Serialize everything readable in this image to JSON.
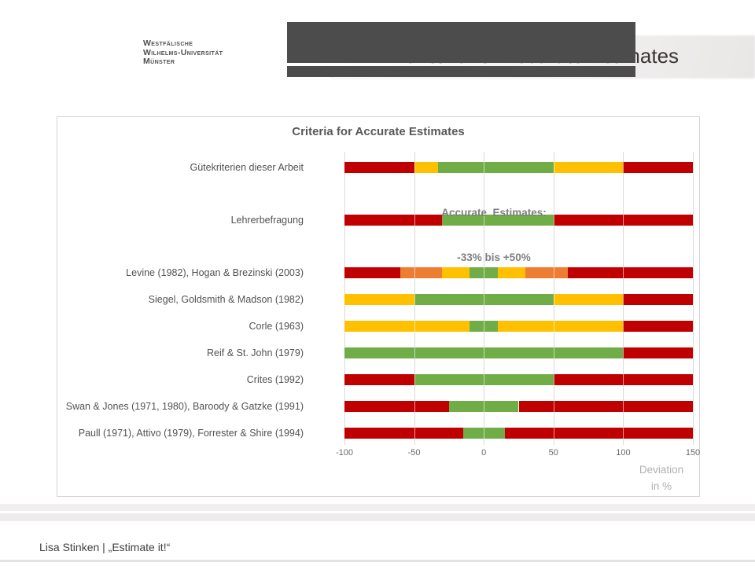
{
  "slide": {
    "logo": {
      "line1": "Westfälische",
      "line2": "Wilhelms-Universität",
      "line3": "Münster"
    },
    "header_title": "Criteria for Accurate Estimates",
    "footer_text": "Lisa Stinken | „Estimate it!“"
  },
  "chart_data": {
    "type": "bar",
    "orientation": "horizontal",
    "stacked": true,
    "title": "Criteria for Accurate Estimates",
    "xlabel": "Deviation in %",
    "xlabel_lines": [
      "Deviation",
      "in %"
    ],
    "xlim": [
      -100,
      150
    ],
    "x_ticks": [
      -100,
      -50,
      0,
      50,
      100,
      150
    ],
    "x_tick_labels": [
      "-100",
      "-50",
      "0",
      "50",
      "100",
      "150"
    ],
    "grid": true,
    "legend": false,
    "annotation": {
      "line1": "Accurate  Estimates:",
      "line2": "-33% bis +50%"
    },
    "colors": {
      "red": "#C00000",
      "orange": "#ED7D31",
      "yellow": "#FFC000",
      "green": "#70AD47",
      "gridline": "#D9D9D9"
    },
    "rows": [
      {
        "label": "Gütekriterien dieser Arbeit",
        "segments": [
          {
            "from": -100,
            "to": -50,
            "color": "red"
          },
          {
            "from": -50,
            "to": -33,
            "color": "yellow"
          },
          {
            "from": -33,
            "to": 50,
            "color": "green"
          },
          {
            "from": 50,
            "to": 100,
            "color": "yellow"
          },
          {
            "from": 100,
            "to": 150,
            "color": "red"
          }
        ]
      },
      {
        "label": "Lehrerbefragung",
        "segments": [
          {
            "from": -100,
            "to": -30,
            "color": "red"
          },
          {
            "from": -30,
            "to": 50,
            "color": "green"
          },
          {
            "from": 50,
            "to": 150,
            "color": "red"
          }
        ]
      },
      {
        "label": "Levine (1982), Hogan & Brezinski (2003)",
        "segments": [
          {
            "from": -100,
            "to": -60,
            "color": "red"
          },
          {
            "from": -60,
            "to": -30,
            "color": "orange"
          },
          {
            "from": -30,
            "to": -10,
            "color": "yellow"
          },
          {
            "from": -10,
            "to": 10,
            "color": "green"
          },
          {
            "from": 10,
            "to": 30,
            "color": "yellow"
          },
          {
            "from": 30,
            "to": 60,
            "color": "orange"
          },
          {
            "from": 60,
            "to": 150,
            "color": "red"
          }
        ]
      },
      {
        "label": "Siegel, Goldsmith & Madson (1982)",
        "segments": [
          {
            "from": -100,
            "to": -50,
            "color": "yellow"
          },
          {
            "from": -50,
            "to": 50,
            "color": "green"
          },
          {
            "from": 50,
            "to": 100,
            "color": "yellow"
          },
          {
            "from": 100,
            "to": 150,
            "color": "red"
          }
        ]
      },
      {
        "label": "Corle (1963)",
        "segments": [
          {
            "from": -100,
            "to": -10,
            "color": "yellow"
          },
          {
            "from": -10,
            "to": 10,
            "color": "green"
          },
          {
            "from": 10,
            "to": 100,
            "color": "yellow"
          },
          {
            "from": 100,
            "to": 150,
            "color": "red"
          }
        ]
      },
      {
        "label": "Reif & St. John (1979)",
        "segments": [
          {
            "from": -100,
            "to": 100,
            "color": "green"
          },
          {
            "from": 100,
            "to": 150,
            "color": "red"
          }
        ]
      },
      {
        "label": "Crites (1992)",
        "segments": [
          {
            "from": -100,
            "to": -50,
            "color": "red"
          },
          {
            "from": -50,
            "to": 50,
            "color": "green"
          },
          {
            "from": 50,
            "to": 150,
            "color": "red"
          }
        ]
      },
      {
        "label": "Swan & Jones (1971, 1980), Baroody & Gatzke (1991)",
        "segments": [
          {
            "from": -100,
            "to": -25,
            "color": "red"
          },
          {
            "from": -25,
            "to": 25,
            "color": "green"
          },
          {
            "from": 25,
            "to": 150,
            "color": "red"
          }
        ]
      },
      {
        "label": "Paull (1971), Attivo (1979), Forrester & Shire (1994)",
        "segments": [
          {
            "from": -100,
            "to": -15,
            "color": "red"
          },
          {
            "from": -15,
            "to": 15,
            "color": "green"
          },
          {
            "from": 15,
            "to": 150,
            "color": "red"
          }
        ]
      }
    ]
  }
}
